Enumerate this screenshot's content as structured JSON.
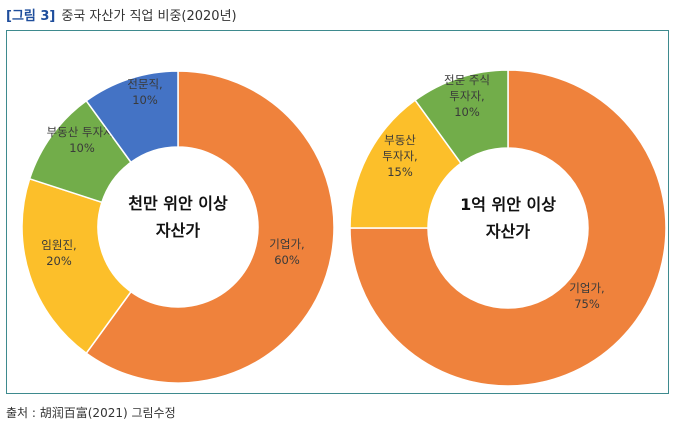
{
  "figure": {
    "label": "[그림 3]",
    "title": "중국 자산가 직업 비중(2020년)",
    "source": "출처 : 胡润百富(2021) 그림수정"
  },
  "chart_data": [
    {
      "type": "pie",
      "donut": true,
      "center_label": [
        "천만 위안 이상",
        "자산가"
      ],
      "slices": [
        {
          "name": "기업가",
          "value": 60,
          "color": "#ef823c",
          "label": [
            "기업가,",
            "60%"
          ]
        },
        {
          "name": "임원진",
          "value": 20,
          "color": "#fcbf2a",
          "label": [
            "임원진,",
            "20%"
          ]
        },
        {
          "name": "부동산 투자자",
          "value": 10,
          "color": "#72ad4a",
          "label": [
            "부동산 투자자,",
            "10%"
          ]
        },
        {
          "name": "전문직",
          "value": 10,
          "color": "#4473c5",
          "label": [
            "전문직,",
            "10%"
          ]
        }
      ]
    },
    {
      "type": "pie",
      "donut": true,
      "center_label": [
        "1억 위안 이상",
        "자산가"
      ],
      "slices": [
        {
          "name": "기업가",
          "value": 75,
          "color": "#ef823c",
          "label": [
            "기업가,",
            "75%"
          ]
        },
        {
          "name": "부동산 투자자",
          "value": 15,
          "color": "#fcbf2a",
          "label": [
            "부동산",
            "투자자,",
            "15%"
          ]
        },
        {
          "name": "전문 주식 투자자",
          "value": 10,
          "color": "#72ad4a",
          "label": [
            "전문 주식",
            "투자자,",
            "10%"
          ]
        }
      ]
    }
  ]
}
